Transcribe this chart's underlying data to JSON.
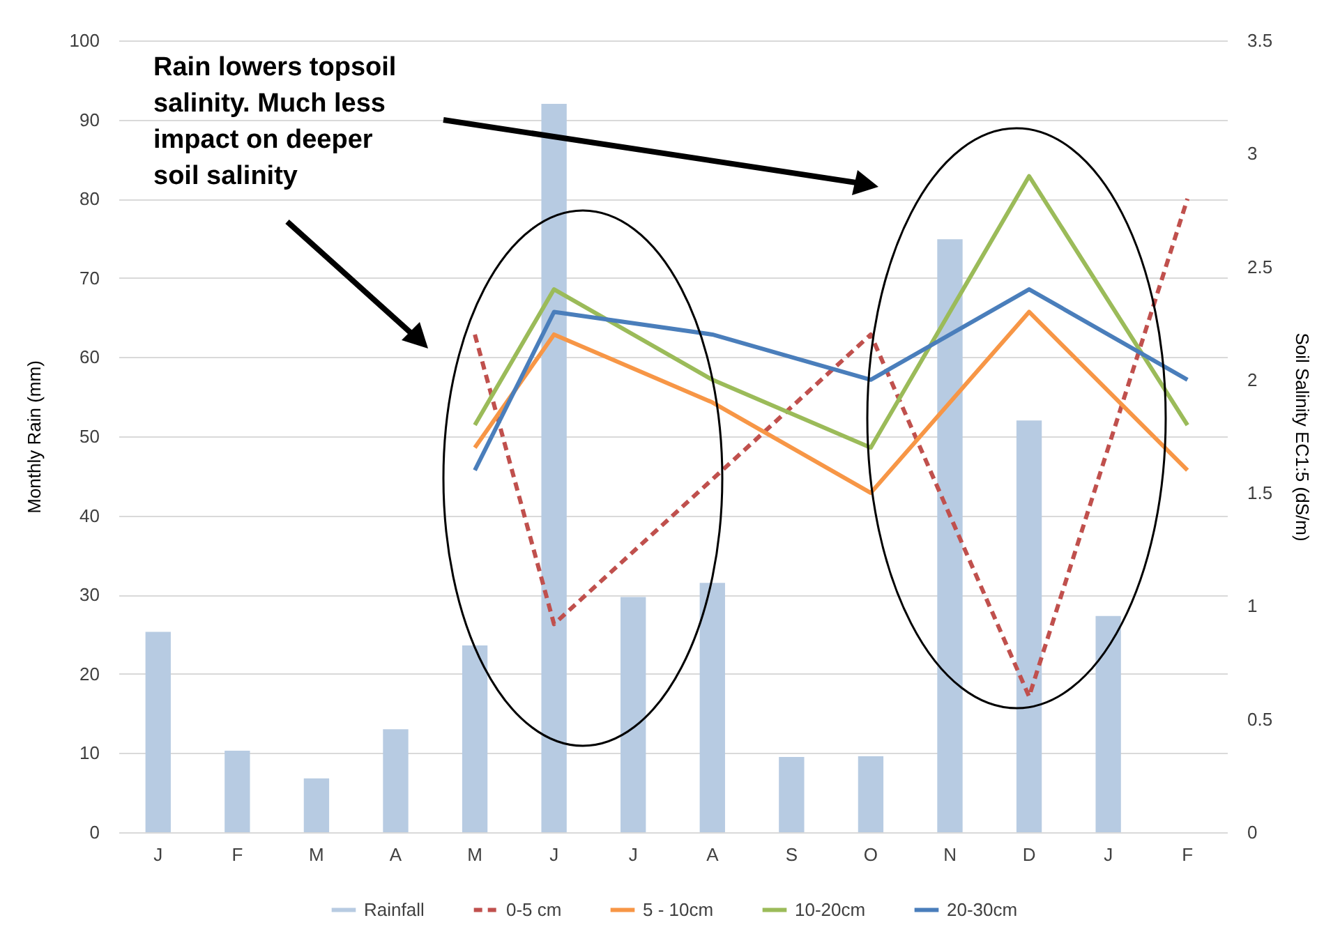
{
  "chart_data": {
    "type": "bar",
    "categories": [
      "J",
      "F",
      "M",
      "A",
      "M",
      "J",
      "J",
      "A",
      "S",
      "O",
      "N",
      "D",
      "J",
      "F"
    ],
    "series": [
      {
        "name": "Rainfall",
        "color": "#b7cbe2",
        "values": [
          25.3,
          10.3,
          6.8,
          13,
          23.6,
          92,
          29.7,
          31.5,
          9.5,
          9.6,
          74.9,
          52,
          27.3,
          null
        ]
      },
      {
        "name": "0-5 cm",
        "type": "line",
        "axis": "y2",
        "line_style": "dashed",
        "color": "#c0504d",
        "values": [
          null,
          null,
          null,
          null,
          2.2,
          0.92,
          null,
          null,
          null,
          2.2,
          null,
          0.6,
          null,
          2.8
        ]
      },
      {
        "name": "5 - 10cm",
        "type": "line",
        "axis": "y2",
        "line_style": "solid",
        "color": "#f79646",
        "values": [
          null,
          null,
          null,
          null,
          1.7,
          2.2,
          null,
          1.9,
          null,
          1.5,
          null,
          2.3,
          null,
          1.6
        ]
      },
      {
        "name": "10-20cm",
        "type": "line",
        "axis": "y2",
        "line_style": "solid",
        "color": "#9bbb59",
        "values": [
          null,
          null,
          null,
          null,
          1.8,
          2.4,
          null,
          2.0,
          null,
          1.7,
          null,
          2.9,
          null,
          1.8
        ]
      },
      {
        "name": "20-30cm",
        "type": "line",
        "axis": "y2",
        "line_style": "solid",
        "color": "#4a7ebb",
        "values": [
          null,
          null,
          null,
          null,
          1.6,
          2.3,
          null,
          2.2,
          null,
          2.0,
          null,
          2.4,
          null,
          2.0
        ]
      }
    ],
    "ylabel": "Monthly Rain (mm)",
    "y2label": "Soil Salinity EC1:5  (dS/m)",
    "ylim": [
      0,
      100
    ],
    "yticks": [
      0,
      10,
      20,
      30,
      40,
      50,
      60,
      70,
      80,
      90,
      100
    ],
    "y2lim": [
      0,
      3.5
    ],
    "y2ticks": [
      0,
      0.5,
      1,
      1.5,
      2,
      2.5,
      3,
      3.5
    ],
    "grid": "y",
    "legend": "bottom",
    "annotations": [
      "Rain lowers topsoil salinity. Much less impact on deeper soil salinity"
    ]
  }
}
